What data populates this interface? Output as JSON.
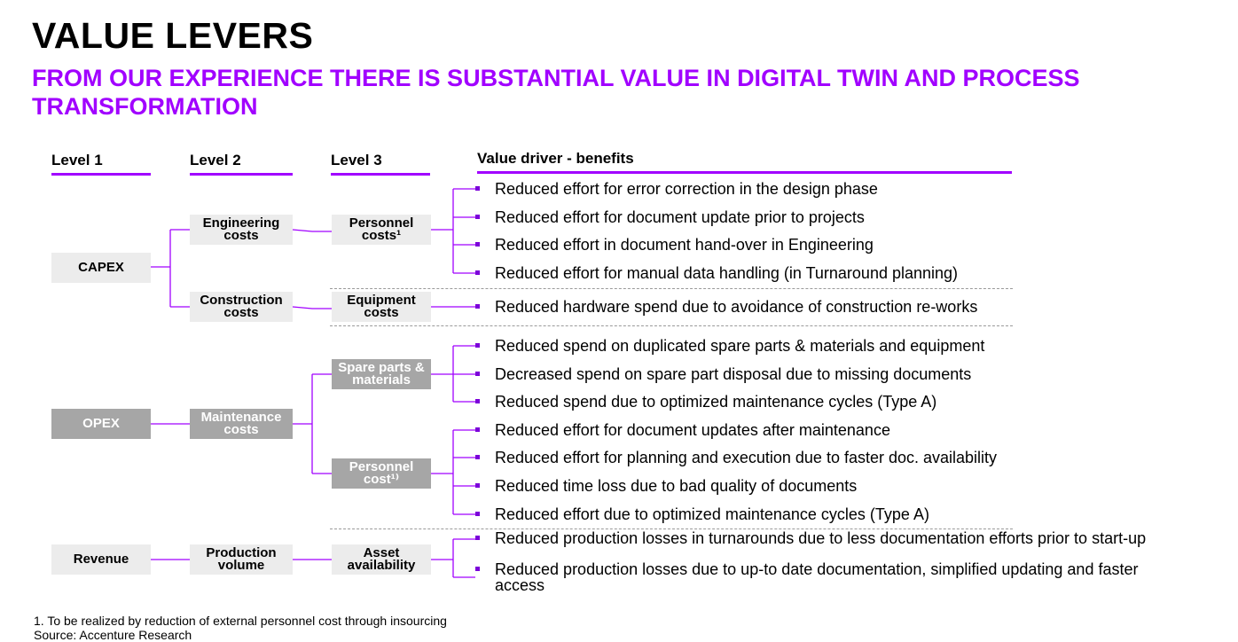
{
  "title": "VALUE LEVERS",
  "subtitle": "FROM OUR EXPERIENCE THERE IS SUBSTANTIAL VALUE IN DIGITAL TWIN AND PROCESS TRANSFORMATION",
  "columns": {
    "level1": "Level 1",
    "level2": "Level 2",
    "level3": "Level 3",
    "benefits": "Value driver - benefits"
  },
  "level1": {
    "capex": "CAPEX",
    "opex": "OPEX",
    "revenue": "Revenue"
  },
  "level2": {
    "engineering": [
      "Engineering",
      "costs"
    ],
    "construction": [
      "Construction",
      "costs"
    ],
    "maintenance": [
      "Maintenance",
      "costs"
    ],
    "production": [
      "Production",
      "volume"
    ]
  },
  "level3": {
    "personnel_capex": [
      "Personnel",
      "costs¹"
    ],
    "equipment": [
      "Equipment",
      "costs"
    ],
    "spare_parts": [
      "Spare parts &",
      "materials"
    ],
    "personnel_opex": [
      "Personnel",
      "cost¹⁾"
    ],
    "asset": [
      "Asset",
      "availability"
    ]
  },
  "benefits": [
    "Reduced effort for error correction in the design phase",
    "Reduced effort for document update prior to projects",
    "Reduced effort in document hand-over in Engineering",
    "Reduced effort for manual data handling (in Turnaround planning)",
    "Reduced hardware spend due to avoidance of construction re-works",
    "Reduced spend on duplicated spare parts & materials and equipment",
    "Decreased spend on spare part disposal due to missing documents",
    "Reduced spend due to optimized maintenance cycles (Type A)",
    "Reduced effort for document updates after maintenance",
    "Reduced effort for planning and execution due to faster doc. availability",
    "Reduced time loss due to bad quality of documents",
    "Reduced effort due to optimized maintenance cycles (Type A)",
    "Reduced production losses in turnarounds due to less documentation efforts prior to start-up",
    "Reduced production losses due to up-to date documentation, simplified updating and faster access"
  ],
  "footnote": "1. To be realized by reduction of external personnel cost through insourcing",
  "footnote2": "Source: Accenture Research",
  "colors": {
    "accent": "#a100ff",
    "box_light": "#ececec",
    "box_grey": "#a6a6a6"
  }
}
